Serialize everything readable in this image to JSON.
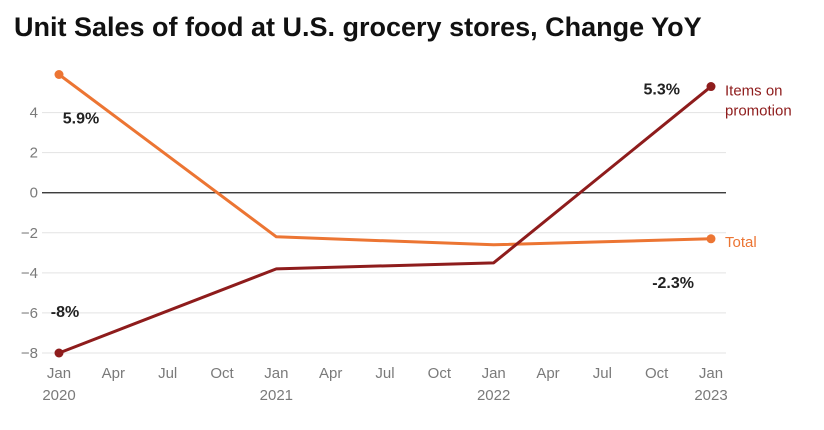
{
  "chart_data": {
    "type": "line",
    "title": "Unit Sales of food at U.S. grocery stores, Change YoY",
    "xlabel": "",
    "ylabel": "",
    "x_ticks": [
      {
        "pos": 0,
        "line1": "Jan",
        "line2": "2020"
      },
      {
        "pos": 3,
        "line1": "Apr",
        "line2": ""
      },
      {
        "pos": 6,
        "line1": "Jul",
        "line2": ""
      },
      {
        "pos": 9,
        "line1": "Oct",
        "line2": ""
      },
      {
        "pos": 12,
        "line1": "Jan",
        "line2": "2021"
      },
      {
        "pos": 15,
        "line1": "Apr",
        "line2": ""
      },
      {
        "pos": 18,
        "line1": "Jul",
        "line2": ""
      },
      {
        "pos": 21,
        "line1": "Oct",
        "line2": ""
      },
      {
        "pos": 24,
        "line1": "Jan",
        "line2": "2022"
      },
      {
        "pos": 27,
        "line1": "Apr",
        "line2": ""
      },
      {
        "pos": 30,
        "line1": "Jul",
        "line2": ""
      },
      {
        "pos": 33,
        "line1": "Oct",
        "line2": ""
      },
      {
        "pos": 36,
        "line1": "Jan",
        "line2": "2023"
      }
    ],
    "xlim": [
      0,
      36
    ],
    "ylim": [
      -8,
      6
    ],
    "y_ticks": [
      {
        "value": -8,
        "label": "−8"
      },
      {
        "value": -6,
        "label": "−6"
      },
      {
        "value": -4,
        "label": "−4"
      },
      {
        "value": -2,
        "label": "−2"
      },
      {
        "value": 0,
        "label": "0"
      },
      {
        "value": 2,
        "label": "2"
      },
      {
        "value": 4,
        "label": "4"
      }
    ],
    "grid": true,
    "series": [
      {
        "name": "Total",
        "color": "#ec7533",
        "points": [
          {
            "x": 0,
            "y": 5.9
          },
          {
            "x": 12,
            "y": -2.2
          },
          {
            "x": 24,
            "y": -2.6
          },
          {
            "x": 36,
            "y": -2.3
          }
        ],
        "labels": [
          {
            "index": 0,
            "text": "5.9%"
          },
          {
            "index": 3,
            "text": "-2.3%"
          }
        ]
      },
      {
        "name": "Items on promotion",
        "name_lines": [
          "Items on",
          "promotion"
        ],
        "color": "#8e1c1c",
        "points": [
          {
            "x": 0,
            "y": -8.0
          },
          {
            "x": 12,
            "y": -3.8
          },
          {
            "x": 24,
            "y": -3.5
          },
          {
            "x": 36,
            "y": 5.3
          }
        ],
        "labels": [
          {
            "index": 0,
            "text": "-8%"
          },
          {
            "index": 3,
            "text": "5.3%"
          }
        ]
      }
    ]
  }
}
